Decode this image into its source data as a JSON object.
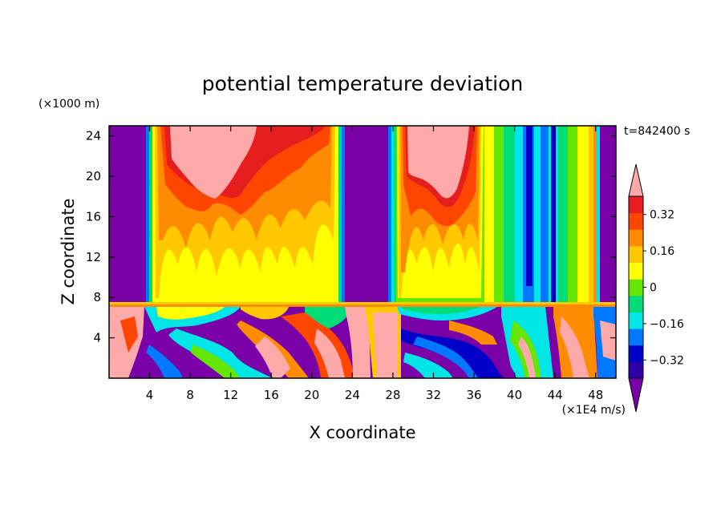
{
  "chart_data": {
    "type": "heatmap",
    "title": "potential temperature deviation",
    "xlabel": "X coordinate",
    "ylabel": "Z coordinate",
    "x_unit": "(×1E4 m/s)",
    "y_unit": "(×1000 m)",
    "time_label": "t=842400 s",
    "xlim": [
      0,
      50
    ],
    "ylim": [
      0,
      25
    ],
    "x_ticks": [
      4,
      8,
      12,
      16,
      20,
      24,
      28,
      32,
      36,
      40,
      44,
      48
    ],
    "y_ticks": [
      4,
      8,
      12,
      16,
      20,
      24
    ],
    "colorbar": {
      "levels": [
        -0.4,
        -0.32,
        -0.24,
        -0.16,
        -0.08,
        0,
        0.08,
        0.16,
        0.24,
        0.32,
        0.4
      ],
      "labels": [
        "0.32",
        "0.16",
        "0",
        "−0.16",
        "−0.32"
      ],
      "label_values": [
        0.32,
        0.16,
        0,
        -0.16,
        -0.32
      ],
      "extend": "both",
      "colors": [
        "#7a00a8",
        "#2e00a8",
        "#0000c8",
        "#0078ff",
        "#00e6e6",
        "#00dc78",
        "#64e600",
        "#ffff00",
        "#ffc800",
        "#ff8c00",
        "#ff4600",
        "#e61e1e",
        "#ffaaaa"
      ]
    },
    "upper_layer_columns": [
      {
        "x": [
          0,
          3.3
        ],
        "value": -0.4
      },
      {
        "x": [
          3.8,
          23
        ],
        "value": "warm column, values rising to >0.4 near top"
      },
      {
        "x": [
          23.5,
          27.5
        ],
        "value": -0.4
      },
      {
        "x": [
          27.8,
          38
        ],
        "value": "warm column, values rising to >0.4 near top"
      },
      {
        "x": [
          38,
          47.5
        ],
        "value": "mixed, minimum ≈ -0.32 near x=41 and x=45"
      },
      {
        "x": [
          48,
          50
        ],
        "value": -0.4
      }
    ],
    "layer_interface_z": 7
  }
}
